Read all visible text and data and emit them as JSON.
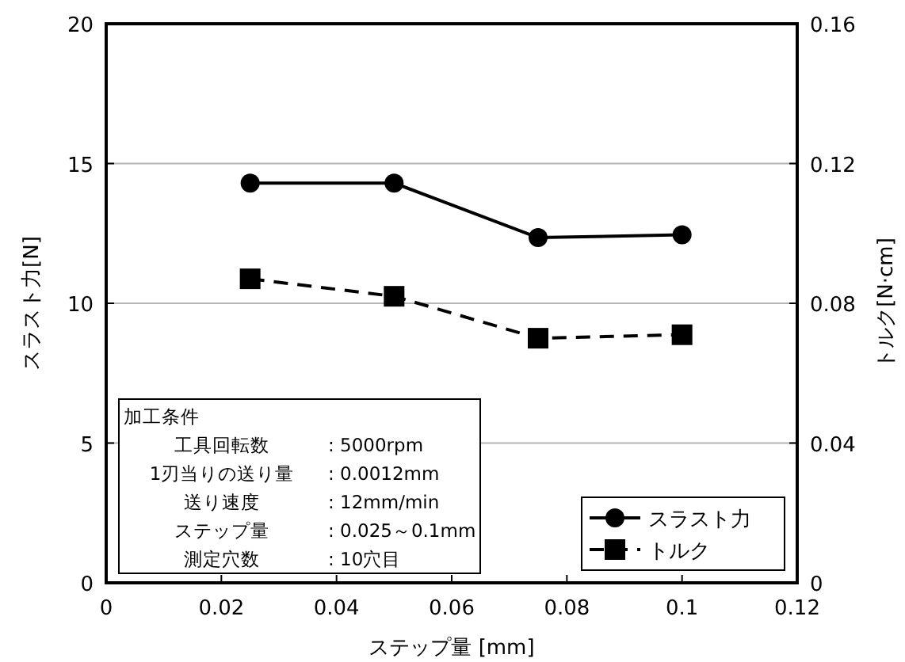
{
  "chart_data": {
    "type": "line",
    "xlabel": "ステップ量 [mm]",
    "ylabel": "スラスト力[N]",
    "y2label": "トルク[N·cm]",
    "x": [
      0.025,
      0.05,
      0.075,
      0.1
    ],
    "series": [
      {
        "name": "スラスト力",
        "color": "#000000",
        "values": [
          14.3,
          14.3,
          12.35,
          12.45
        ],
        "marker": "circle",
        "line_style": "solid"
      },
      {
        "name": "トルク",
        "color": "#000000",
        "values": [
          0.087,
          0.082,
          0.07,
          0.071
        ],
        "marker": "square",
        "line_style": "dashed",
        "axis": "y2"
      }
    ],
    "xlim": [
      0,
      0.12
    ],
    "xticks": [
      0,
      0.02,
      0.04,
      0.06,
      0.08,
      0.1,
      0.12
    ],
    "ylim": [
      0,
      20
    ],
    "yticks": [
      0,
      5,
      10,
      15,
      20
    ],
    "y2lim": [
      0,
      0.16
    ],
    "y2ticks": [
      0,
      0.04,
      0.08,
      0.12,
      0.16
    ],
    "grid": "y",
    "legend": "bottom right",
    "annotations": [
      "加工条件",
      "工具回転数 : 5000rpm",
      "1刃当りの送り量 : 0.0012mm",
      "送り速度 : 12mm/min",
      "ステップ量 : 0.025～0.1mm",
      "測定穴数 : 10穴目"
    ]
  }
}
